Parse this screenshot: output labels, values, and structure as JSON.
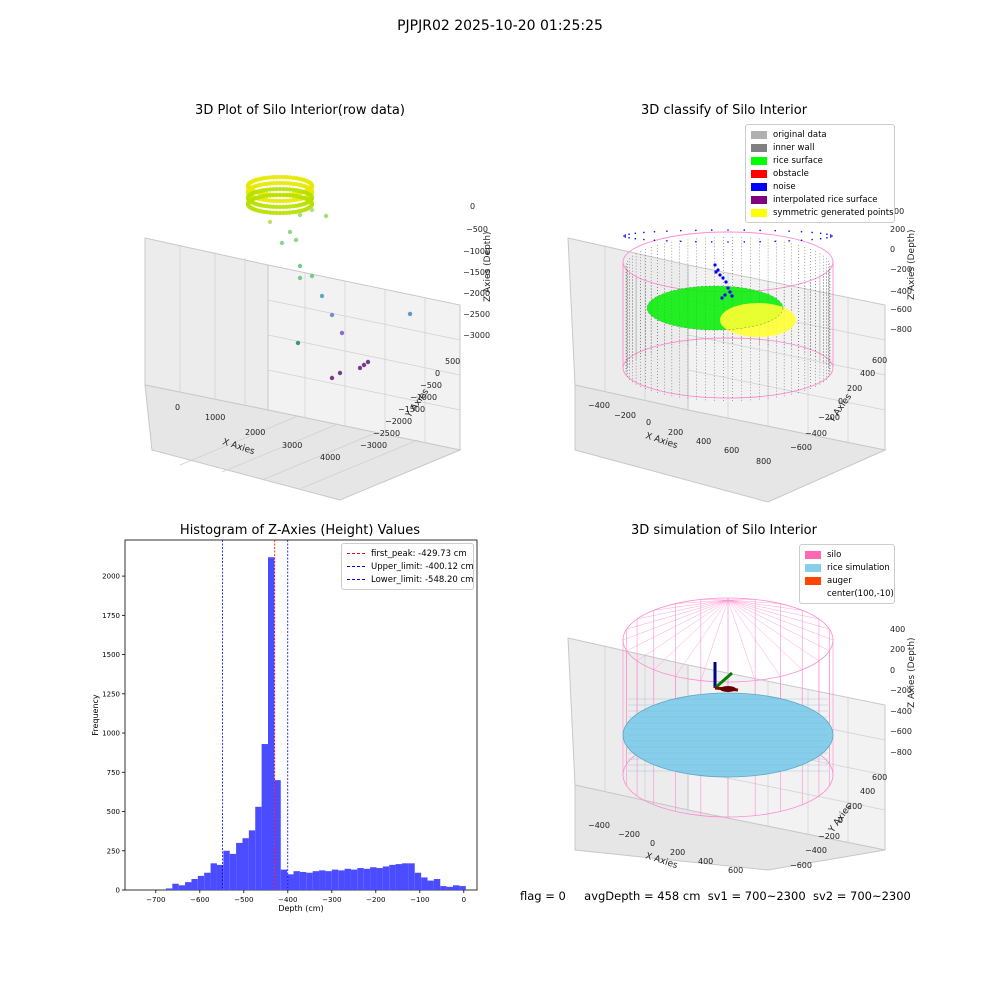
{
  "suptitle": "PJPJR02 2025-10-20 01:25:25",
  "panels": {
    "raw": {
      "title": "3D Plot of Silo Interior(row data)",
      "xlabel": "X Axies",
      "ylabel": "Y Axies",
      "zlabel": "Z Axies (Depth)",
      "xticks": [
        "0",
        "1000",
        "2000",
        "3000",
        "4000"
      ],
      "yticks": [
        "500",
        "0",
        "−500",
        "−1000",
        "−1500",
        "−2000",
        "−2500",
        "−3000"
      ],
      "zticks": [
        "0",
        "−500",
        "−1000",
        "−1500",
        "−2000",
        "−2500",
        "−3000"
      ]
    },
    "classify": {
      "title": "3D classify of Silo Interior",
      "xlabel": "X Axies",
      "ylabel": "Y Axies",
      "zlabel": "Z Axies (Depth)",
      "xticks": [
        "−400",
        "−200",
        "0",
        "200",
        "400",
        "600",
        "800"
      ],
      "yticks": [
        "600",
        "400",
        "200",
        "0",
        "−200",
        "−400",
        "−600"
      ],
      "zticks": [
        "200",
        "0",
        "−200",
        "−400",
        "−600",
        "−800"
      ],
      "z_partial_tick": "00",
      "legend": [
        {
          "label": "original data",
          "color": "#b0b0b0"
        },
        {
          "label": "inner wall",
          "color": "#808080"
        },
        {
          "label": "rice surface",
          "color": "#00ff00"
        },
        {
          "label": "obstacle",
          "color": "#ff0000"
        },
        {
          "label": "noise",
          "color": "#0000ff"
        },
        {
          "label": "interpolated rice surface",
          "color": "#800080"
        },
        {
          "label": "symmetric generated points",
          "color": "#ffff00"
        }
      ]
    },
    "simulation": {
      "title": "3D simulation of Silo Interior",
      "xlabel": "X Axies",
      "ylabel": "Y Axies",
      "zlabel": "Z Axies (Depth)",
      "xticks": [
        "−400",
        "−200",
        "0",
        "200",
        "400",
        "600"
      ],
      "yticks": [
        "600",
        "400",
        "200",
        "0",
        "−200",
        "−400",
        "−600"
      ],
      "zticks": [
        "400",
        "200",
        "0",
        "−200",
        "−400",
        "−600",
        "−800"
      ],
      "legend": [
        {
          "label": "silo",
          "color": "#ff69b4"
        },
        {
          "label": "rice simulation",
          "color": "#87ceeb"
        },
        {
          "label": "auger",
          "color": "#ff4500"
        },
        {
          "label": "center(100,-10)",
          "color": ""
        }
      ]
    }
  },
  "chart_data": {
    "type": "bar",
    "title": "Histogram of Z-Axies (Height) Values",
    "xlabel": "Depth (cm)",
    "ylabel": "Frequency",
    "xlim": [
      -770,
      30
    ],
    "ylim": [
      0,
      2230
    ],
    "xticks": [
      -700,
      -600,
      -500,
      -400,
      -300,
      -200,
      -100,
      0
    ],
    "xtick_labels": [
      "−700",
      "−600",
      "−500",
      "−400",
      "−300",
      "−200",
      "−100",
      "0"
    ],
    "yticks": [
      0,
      250,
      500,
      750,
      1000,
      1250,
      1500,
      1750,
      2000
    ],
    "bar_color": "#4b4bff",
    "bin_width": 14.5,
    "bins_start": [
      -677,
      -662.5,
      -648,
      -633.5,
      -619,
      -604.5,
      -590,
      -575.5,
      -561,
      -546.5,
      -532,
      -517.5,
      -503,
      -488.5,
      -474,
      -459.5,
      -445,
      -430.5,
      -416,
      -401.5,
      -387,
      -372.5,
      -358,
      -343.5,
      -329,
      -314.5,
      -300,
      -285.5,
      -271,
      -256.5,
      -242,
      -227.5,
      -213,
      -198.5,
      -184,
      -169.5,
      -155,
      -140.5,
      -126,
      -111.5,
      -97,
      -82.5,
      -68,
      -53.5,
      -39,
      -24.5,
      -10
    ],
    "values": [
      10,
      40,
      30,
      50,
      70,
      90,
      110,
      170,
      160,
      250,
      230,
      300,
      330,
      380,
      530,
      930,
      2120,
      700,
      130,
      100,
      120,
      115,
      110,
      120,
      125,
      120,
      130,
      125,
      135,
      130,
      140,
      135,
      145,
      140,
      150,
      160,
      165,
      170,
      170,
      110,
      80,
      60,
      70,
      25,
      20,
      30,
      25
    ],
    "lines": [
      {
        "name": "first_peak: -429.73 cm",
        "x": -429.73,
        "color": "#ff0000"
      },
      {
        "name": "Upper_limit: -400.12 cm",
        "x": -400.12,
        "color": "#0000ff"
      },
      {
        "name": "Lower_limit: -548.20 cm",
        "x": -548.2,
        "color": "#0000ff"
      }
    ]
  },
  "footer": {
    "flag": "flag = 0",
    "avg_depth": "avgDepth = 458 cm",
    "sv1": "sv1 = 700~2300",
    "sv2": "sv2 = 700~2300"
  }
}
